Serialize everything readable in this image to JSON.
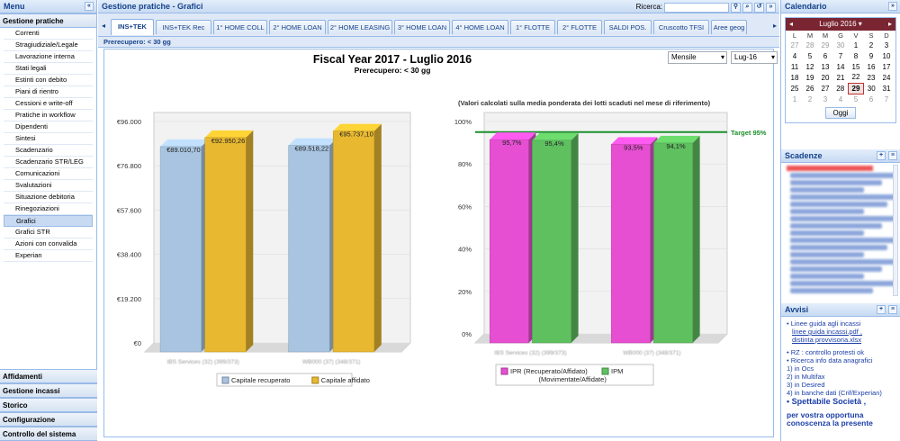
{
  "left": {
    "title": "Menu",
    "section_title": "Gestione pratiche",
    "items": [
      "Correnti",
      "Stragiudiziale/Legale",
      "Lavorazione interna",
      "Stati legali",
      "Estinti con debito",
      "Piani di rientro",
      "Cessioni e write-off",
      "Pratiche in workflow",
      "Dipendenti",
      "Sintesi",
      "Scadenzario",
      "Scadenzario STR/LEG",
      "Comunicazioni",
      "Svalutazioni",
      "Situazione debitoria",
      "Rinegoziazioni",
      "Grafici",
      "Grafici STR",
      "Azioni con convalida",
      "Experian"
    ],
    "selected_index": 16,
    "bottom_sections": [
      "Affidamenti",
      "Gestione incassi",
      "Storico",
      "Configurazione",
      "Controllo del sistema"
    ]
  },
  "center": {
    "title": "Gestione pratiche - Grafici",
    "search_label": "Ricerca:",
    "tabs": [
      "INS+TEK",
      "INS+TEK Rec",
      "1° HOME COLL",
      "2° HOME LOAN",
      "2° HOME LEASING",
      "3° HOME LOAN",
      "4° HOME LOAN",
      "1° FLOTTE",
      "2° FLOTTE",
      "SALDI POS.",
      "Cruscotto TFSI",
      "Aree geog"
    ],
    "active_tab": 0,
    "subheader": "Prerecupero: < 30 gg",
    "period_select": "Mensile",
    "month_select": "Lug-16"
  },
  "chart_data": [
    {
      "type": "bar",
      "title": "Fiscal Year 2017 - Luglio 2016",
      "subtitle": "Prerecupero: < 30 gg",
      "categories": [
        "IBS Services (32) (399/373)",
        "WB000 (37) (348/371)"
      ],
      "series": [
        {
          "name": "Capitale recuperato",
          "values": [
            89010.7,
            89518.22
          ],
          "labels": [
            "€89.010,70",
            "€89.518,22"
          ],
          "color": "#a8c4e0"
        },
        {
          "name": "Capitale affidato",
          "values": [
            92950.26,
            95737.1
          ],
          "labels": [
            "€92.950,26",
            "€95.737,10"
          ],
          "color": "#e8b830"
        }
      ],
      "ylim": [
        0,
        96000
      ],
      "yticks": [
        "€0",
        "€19.200",
        "€38.400",
        "€57.600",
        "€76.800",
        "€96.000"
      ],
      "grid": true,
      "legend": "bottom"
    },
    {
      "type": "bar",
      "title": "(Valori calcolati sulla media ponderata dei lotti scaduti nel mese di riferimento)",
      "categories": [
        "IBS Services (32) (399/373)",
        "WB000 (37) (348/371)"
      ],
      "series": [
        {
          "name": "IPR (Recuperato/Affidato)",
          "values": [
            95.7,
            93.5
          ],
          "labels": [
            "95,7%",
            "93,5%"
          ],
          "color": "#e64fd2"
        },
        {
          "name": "IPM (Movimentate/Affidate)",
          "values": [
            95.4,
            94.1
          ],
          "labels": [
            "95,4%",
            "94,1%"
          ],
          "color": "#5fc060"
        }
      ],
      "ylim": [
        0,
        100
      ],
      "yticks": [
        "0%",
        "20%",
        "40%",
        "60%",
        "80%",
        "100%"
      ],
      "target": {
        "value": 95,
        "label": "Target 95%"
      },
      "grid": true,
      "legend": "bottom"
    }
  ],
  "calendar": {
    "title": "Calendario",
    "month": "Luglio 2016",
    "days": [
      "L",
      "M",
      "M",
      "G",
      "V",
      "S",
      "D"
    ],
    "weeks": [
      [
        "27",
        "28",
        "29",
        "30",
        "1",
        "2",
        "3"
      ],
      [
        "4",
        "5",
        "6",
        "7",
        "8",
        "9",
        "10"
      ],
      [
        "11",
        "12",
        "13",
        "14",
        "15",
        "16",
        "17"
      ],
      [
        "18",
        "19",
        "20",
        "21",
        "22",
        "23",
        "24"
      ],
      [
        "25",
        "26",
        "27",
        "28",
        "29",
        "30",
        "31"
      ],
      [
        "1",
        "2",
        "3",
        "4",
        "5",
        "6",
        "7"
      ]
    ],
    "today": "29",
    "today_button": "Oggi"
  },
  "scadenze": {
    "title": "Scadenze"
  },
  "avvisi": {
    "title": "Avvisi",
    "lines": [
      "Linee guida agli incassi",
      "linee guida incassi.pdf ,",
      "distinta provvisoria.xlsx",
      "RZ : controllo protesti ok",
      "Ricerca info data anagrafici",
      "1) in Ocs",
      "2) in Multifax",
      "3) in Desired",
      "4) in banche dati (Crif/Experian)",
      "Spettabile Società ,",
      "per vostra opportuna",
      "conoscenza la presente"
    ]
  }
}
